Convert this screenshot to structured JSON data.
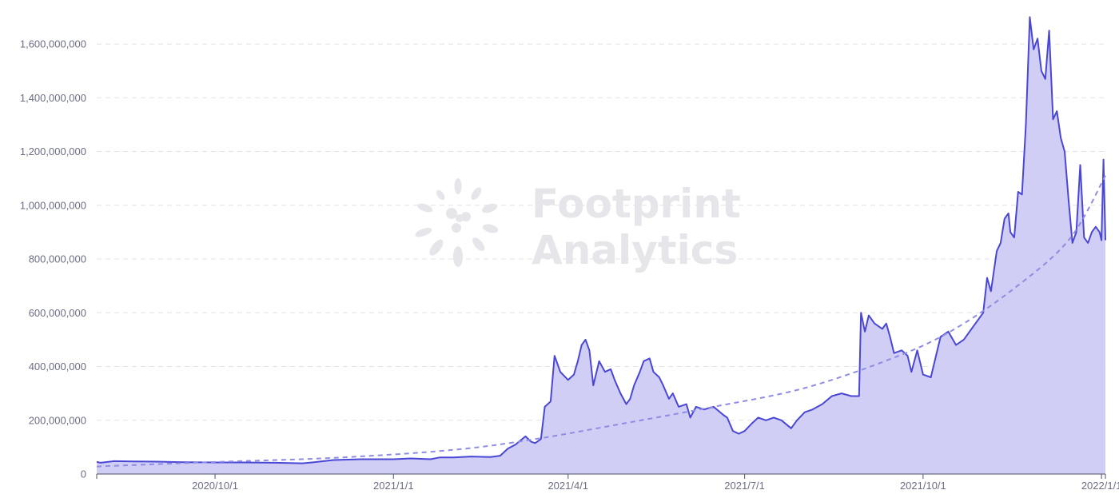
{
  "watermark": {
    "line1": "Footprint",
    "line2": "Analytics"
  },
  "chart_data": {
    "type": "area",
    "title": "",
    "xlabel": "",
    "ylabel": "",
    "x_range": [
      "2020-08-01",
      "2022-01-03"
    ],
    "ylim": [
      0,
      1740000000
    ],
    "y_ticks": [
      0,
      200000000,
      400000000,
      600000000,
      800000000,
      1000000000,
      1200000000,
      1400000000,
      1600000000
    ],
    "y_tick_labels": [
      "0",
      "200,000,000",
      "400,000,000",
      "600,000,000",
      "800,000,000",
      "1,000,000,000",
      "1,200,000,000",
      "1,400,000,000",
      "1,600,000,000"
    ],
    "x_ticks": [
      "2020-10-01",
      "2021-01-01",
      "2021-04-01",
      "2021-07-01",
      "2021-10-01",
      "2022-01-01"
    ],
    "x_tick_labels": [
      "2020/10/1",
      "2021/1/1",
      "2021/4/1",
      "2021/7/1",
      "2021/10/1",
      "2022/1/1"
    ],
    "grid": true,
    "legend": "none",
    "colors": {
      "line": "#4a47d6",
      "fill": "#cdcbf3",
      "trend": "#8f8ce3"
    },
    "series": [
      {
        "kind": "area",
        "x": [
          "2020-08-01",
          "2020-08-03",
          "2020-08-10",
          "2020-08-20",
          "2020-09-01",
          "2020-09-15",
          "2020-10-01",
          "2020-10-15",
          "2020-11-01",
          "2020-11-15",
          "2020-11-20",
          "2020-12-01",
          "2020-12-15",
          "2020-12-20",
          "2021-01-01",
          "2021-01-10",
          "2021-01-20",
          "2021-01-25",
          "2021-02-01",
          "2021-02-10",
          "2021-02-20",
          "2021-02-25",
          "2021-03-01",
          "2021-03-05",
          "2021-03-10",
          "2021-03-13",
          "2021-03-15",
          "2021-03-18",
          "2021-03-20",
          "2021-03-23",
          "2021-03-25",
          "2021-03-28",
          "2021-04-01",
          "2021-04-04",
          "2021-04-06",
          "2021-04-08",
          "2021-04-10",
          "2021-04-12",
          "2021-04-14",
          "2021-04-17",
          "2021-04-20",
          "2021-04-23",
          "2021-04-25",
          "2021-04-28",
          "2021-05-01",
          "2021-05-03",
          "2021-05-05",
          "2021-05-08",
          "2021-05-10",
          "2021-05-13",
          "2021-05-15",
          "2021-05-18",
          "2021-05-20",
          "2021-05-23",
          "2021-05-25",
          "2021-05-28",
          "2021-06-01",
          "2021-06-03",
          "2021-06-06",
          "2021-06-10",
          "2021-06-15",
          "2021-06-20",
          "2021-06-22",
          "2021-06-25",
          "2021-06-28",
          "2021-07-01",
          "2021-07-05",
          "2021-07-08",
          "2021-07-12",
          "2021-07-16",
          "2021-07-20",
          "2021-07-25",
          "2021-07-28",
          "2021-08-01",
          "2021-08-05",
          "2021-08-10",
          "2021-08-15",
          "2021-08-20",
          "2021-08-25",
          "2021-08-29",
          "2021-08-30",
          "2021-09-01",
          "2021-09-03",
          "2021-09-06",
          "2021-09-10",
          "2021-09-12",
          "2021-09-14",
          "2021-09-16",
          "2021-09-20",
          "2021-09-23",
          "2021-09-25",
          "2021-09-28",
          "2021-10-01",
          "2021-10-05",
          "2021-10-10",
          "2021-10-14",
          "2021-10-18",
          "2021-10-22",
          "2021-10-26",
          "2021-10-28",
          "2021-11-01",
          "2021-11-03",
          "2021-11-05",
          "2021-11-08",
          "2021-11-10",
          "2021-11-12",
          "2021-11-14",
          "2021-11-15",
          "2021-11-17",
          "2021-11-19",
          "2021-11-21",
          "2021-11-23",
          "2021-11-25",
          "2021-11-27",
          "2021-11-29",
          "2021-12-01",
          "2021-12-03",
          "2021-12-05",
          "2021-12-07",
          "2021-12-09",
          "2021-12-11",
          "2021-12-13",
          "2021-12-15",
          "2021-12-17",
          "2021-12-19",
          "2021-12-21",
          "2021-12-23",
          "2021-12-25",
          "2021-12-27",
          "2021-12-29",
          "2021-12-31",
          "2022-01-01",
          "2022-01-02",
          "2022-01-03"
        ],
        "y": [
          45000000,
          42000000,
          48000000,
          47000000,
          46000000,
          44000000,
          43000000,
          43000000,
          42000000,
          40000000,
          43000000,
          52000000,
          55000000,
          55000000,
          55000000,
          58000000,
          55000000,
          62000000,
          62000000,
          65000000,
          63000000,
          68000000,
          95000000,
          110000000,
          140000000,
          120000000,
          115000000,
          130000000,
          250000000,
          270000000,
          440000000,
          380000000,
          350000000,
          370000000,
          420000000,
          480000000,
          500000000,
          460000000,
          330000000,
          420000000,
          380000000,
          390000000,
          350000000,
          300000000,
          260000000,
          280000000,
          330000000,
          380000000,
          420000000,
          430000000,
          380000000,
          360000000,
          330000000,
          280000000,
          300000000,
          250000000,
          260000000,
          210000000,
          250000000,
          240000000,
          250000000,
          220000000,
          210000000,
          160000000,
          150000000,
          160000000,
          190000000,
          210000000,
          200000000,
          210000000,
          200000000,
          170000000,
          200000000,
          230000000,
          240000000,
          260000000,
          290000000,
          300000000,
          290000000,
          290000000,
          600000000,
          530000000,
          590000000,
          560000000,
          540000000,
          560000000,
          510000000,
          450000000,
          460000000,
          440000000,
          380000000,
          460000000,
          370000000,
          360000000,
          510000000,
          530000000,
          480000000,
          500000000,
          540000000,
          560000000,
          600000000,
          730000000,
          680000000,
          830000000,
          860000000,
          950000000,
          970000000,
          900000000,
          880000000,
          1050000000,
          1040000000,
          1300000000,
          1700000000,
          1580000000,
          1620000000,
          1500000000,
          1470000000,
          1650000000,
          1320000000,
          1350000000,
          1250000000,
          1200000000,
          1020000000,
          860000000,
          900000000,
          1150000000,
          880000000,
          860000000,
          900000000,
          920000000,
          900000000,
          870000000,
          1170000000,
          870000000
        ]
      },
      {
        "kind": "trend",
        "style": "dashed",
        "x": [
          "2020-08-01",
          "2020-10-01",
          "2020-12-01",
          "2021-02-01",
          "2021-03-15",
          "2021-05-01",
          "2021-06-15",
          "2021-08-01",
          "2021-09-15",
          "2021-10-15",
          "2021-11-15",
          "2021-12-15",
          "2022-01-03"
        ],
        "y": [
          28000000,
          45000000,
          60000000,
          90000000,
          130000000,
          190000000,
          250000000,
          320000000,
          430000000,
          530000000,
          680000000,
          870000000,
          1110000000
        ]
      }
    ]
  }
}
